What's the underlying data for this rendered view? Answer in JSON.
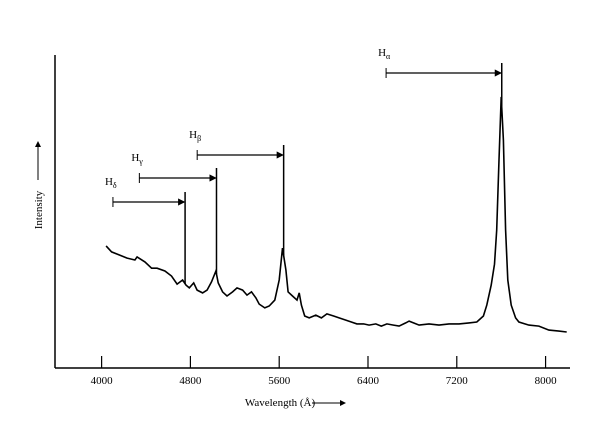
{
  "chart_data": {
    "type": "line",
    "x_label": "Wavelength (Å)",
    "y_label": "Intensity",
    "xlim": [
      3580,
      8220
    ],
    "ylim": [
      0,
      100
    ],
    "xticks": [
      4000,
      4800,
      5600,
      6400,
      7200,
      8000
    ],
    "color": "#000000",
    "x": [
      4040,
      4090,
      4160,
      4230,
      4300,
      4320,
      4390,
      4450,
      4500,
      4570,
      4630,
      4680,
      4730,
      4760,
      4790,
      4830,
      4860,
      4910,
      4950,
      4990,
      5030,
      5050,
      5090,
      5130,
      5180,
      5220,
      5270,
      5310,
      5350,
      5390,
      5420,
      5470,
      5510,
      5560,
      5600,
      5630,
      5660,
      5680,
      5720,
      5760,
      5780,
      5800,
      5830,
      5870,
      5930,
      5980,
      6030,
      6090,
      6140,
      6200,
      6250,
      6300,
      6360,
      6410,
      6470,
      6520,
      6570,
      6630,
      6680,
      6740,
      6770,
      6810,
      6860,
      6950,
      7040,
      7130,
      7220,
      7310,
      7380,
      7440,
      7470,
      7510,
      7540,
      7560,
      7580,
      7600,
      7620,
      7640,
      7660,
      7690,
      7730,
      7760,
      7850,
      7940,
      8030,
      8120,
      8190
    ],
    "values": [
      39.0,
      37.1,
      36.1,
      35.1,
      34.5,
      35.5,
      33.9,
      31.9,
      31.9,
      31.0,
      29.4,
      26.8,
      28.1,
      26.5,
      25.6,
      27.2,
      24.9,
      24.0,
      24.9,
      27.5,
      31.0,
      27.2,
      24.3,
      23.0,
      24.3,
      25.6,
      24.9,
      23.3,
      24.3,
      22.4,
      20.4,
      19.2,
      19.8,
      21.7,
      28.1,
      38.3,
      31.3,
      24.3,
      23.0,
      21.7,
      24.0,
      20.1,
      16.6,
      16.0,
      16.9,
      16.0,
      17.3,
      16.6,
      16.0,
      15.3,
      14.7,
      14.1,
      14.1,
      13.7,
      14.1,
      13.4,
      14.1,
      13.7,
      13.4,
      14.4,
      15.0,
      14.4,
      13.7,
      14.1,
      13.7,
      14.1,
      14.1,
      14.4,
      14.7,
      16.6,
      20.1,
      26.5,
      33.2,
      44.1,
      66.5,
      86.6,
      72.8,
      44.1,
      28.1,
      20.1,
      16.0,
      14.7,
      13.7,
      13.4,
      12.1,
      11.8,
      11.5
    ],
    "annotations": [
      {
        "text": "H",
        "subscript": "δ",
        "rest": 4102,
        "observed": 4752
      },
      {
        "text": "H",
        "subscript": "γ",
        "rest": 4340,
        "observed": 5035
      },
      {
        "text": "H",
        "subscript": "β",
        "rest": 4861,
        "observed": 5640
      },
      {
        "text": "H",
        "subscript": "α",
        "rest": 6563,
        "observed": 7605
      }
    ]
  }
}
